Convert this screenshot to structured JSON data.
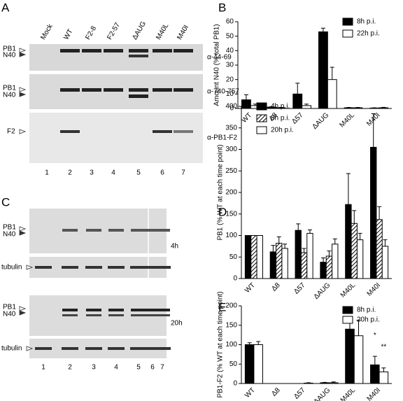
{
  "panel_labels": [
    "A",
    "B",
    "C",
    "D",
    "E"
  ],
  "blot_a": {
    "lanes": [
      "Mock",
      "WT",
      "F2-8",
      "F2-57",
      "ΔAUG",
      "M40L",
      "M40I"
    ],
    "lane_numbers": [
      "1",
      "2",
      "3",
      "4",
      "5",
      "6",
      "7"
    ],
    "rows": [
      {
        "labels": [
          "PB1",
          "N40"
        ],
        "antibody": "α-44-69"
      },
      {
        "labels": [
          "PB1",
          "N40"
        ],
        "antibody": "α-740-757"
      },
      {
        "labels": [
          "F2"
        ],
        "antibody": "α-PB1-F2"
      }
    ]
  },
  "blot_c": {
    "rows": [
      {
        "labels": [
          "PB1",
          "N40"
        ]
      },
      {
        "labels": [
          "tubulin"
        ]
      },
      {
        "labels": [
          "PB1",
          "N40"
        ]
      },
      {
        "labels": [
          "tubulin"
        ]
      }
    ],
    "timepoints": [
      "4h",
      "20h"
    ],
    "lane_numbers": [
      "1",
      "2",
      "3",
      "4",
      "5",
      "6",
      "7"
    ]
  },
  "chart_data": [
    {
      "type": "bar",
      "y_label": "Amount N40 (% total PB1)",
      "categories": [
        "WT",
        "Δ8",
        "Δ57",
        "ΔAUG",
        "M40L",
        "M40I"
      ],
      "series": [
        {
          "name": "8h p.i.",
          "color": "#000000",
          "values": [
            6,
            1,
            10,
            53,
            0.5,
            0.3
          ],
          "errors": [
            3.5,
            0.3,
            7.5,
            2.5,
            0.2,
            0.2
          ]
        },
        {
          "name": "22h p.i.",
          "color": "#ffffff",
          "values": [
            2,
            0.5,
            2,
            20,
            0.5,
            0.5
          ],
          "errors": [
            1,
            0.3,
            1,
            8.5,
            0.2,
            0.3
          ]
        }
      ],
      "ylim": [
        0,
        60
      ],
      "yticks": [
        0,
        10,
        20,
        30,
        40,
        50,
        60
      ],
      "legend": "upper right"
    },
    {
      "type": "bar",
      "y_label": "PB1 (% WT at each time point)",
      "categories": [
        "WT",
        "Δ8",
        "Δ57",
        "ΔAUG",
        "M40L",
        "M40I"
      ],
      "series": [
        {
          "name": "4h p.i.",
          "color": "#000000",
          "values": [
            100,
            62,
            112,
            38,
            172,
            305
          ],
          "errors": [
            0,
            15,
            15,
            10,
            72,
            78
          ]
        },
        {
          "name": "8h p.i.",
          "color": "#ffffff",
          "fill": "hatch",
          "values": [
            100,
            82,
            60,
            52,
            128,
            137
          ],
          "errors": [
            0,
            15,
            10,
            12,
            30,
            30
          ]
        },
        {
          "name": "20h p.i.",
          "color": "#ffffff",
          "values": [
            100,
            70,
            105,
            80,
            90,
            75
          ],
          "errors": [
            0,
            10,
            8,
            12,
            15,
            15
          ]
        }
      ],
      "ylim": [
        0,
        400
      ],
      "yticks": [
        0,
        50,
        100,
        150,
        200,
        250,
        300,
        350,
        400
      ],
      "legend": "upper left"
    },
    {
      "type": "bar",
      "y_label": "PB1-F2 (% WT at each time point)",
      "categories": [
        "WT",
        "Δ8",
        "Δ57",
        "ΔAUG",
        "M40L",
        "M40I"
      ],
      "series": [
        {
          "name": "8h p.i.",
          "color": "#000000",
          "values": [
            100,
            0,
            0,
            2,
            140,
            48
          ],
          "errors": [
            5,
            0,
            0,
            1,
            22,
            22
          ]
        },
        {
          "name": "20h p.i.",
          "color": "#ffffff",
          "values": [
            100,
            0,
            1,
            2,
            123,
            30
          ],
          "errors": [
            8,
            0,
            1,
            2,
            40,
            10
          ]
        }
      ],
      "ylim": [
        0,
        200
      ],
      "yticks": [
        0,
        50,
        100,
        150,
        200
      ],
      "legend": "upper right",
      "annotations": [
        {
          "text": "*",
          "category": "M40I",
          "series": "8h p.i."
        },
        {
          "text": "**",
          "category": "M40I",
          "series": "20h p.i."
        }
      ]
    }
  ]
}
